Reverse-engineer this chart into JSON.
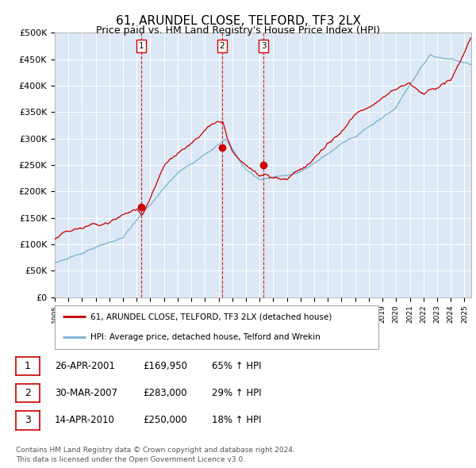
{
  "title": "61, ARUNDEL CLOSE, TELFORD, TF3 2LX",
  "subtitle": "Price paid vs. HM Land Registry's House Price Index (HPI)",
  "ylabel_ticks": [
    "£0",
    "£50K",
    "£100K",
    "£150K",
    "£200K",
    "£250K",
    "£300K",
    "£350K",
    "£400K",
    "£450K",
    "£500K"
  ],
  "ytick_values": [
    0,
    50000,
    100000,
    150000,
    200000,
    250000,
    300000,
    350000,
    400000,
    450000,
    500000
  ],
  "xlim_start": 1995.0,
  "xlim_end": 2025.5,
  "ylim": [
    0,
    500000
  ],
  "sale_dates": [
    2001.32,
    2007.25,
    2010.29
  ],
  "sale_prices": [
    169950,
    283000,
    250000
  ],
  "sale_labels": [
    "1",
    "2",
    "3"
  ],
  "hpi_line_color": "#7ab0d4",
  "sale_line_color": "#cc0000",
  "dashed_line_color": "#cc0000",
  "chart_bg_color": "#dce8f5",
  "legend_entries": [
    "61, ARUNDEL CLOSE, TELFORD, TF3 2LX (detached house)",
    "HPI: Average price, detached house, Telford and Wrekin"
  ],
  "table_rows": [
    [
      "1",
      "26-APR-2001",
      "£169,950",
      "65% ↑ HPI"
    ],
    [
      "2",
      "30-MAR-2007",
      "£283,000",
      "29% ↑ HPI"
    ],
    [
      "3",
      "14-APR-2010",
      "£250,000",
      "18% ↑ HPI"
    ]
  ],
  "footer": "Contains HM Land Registry data © Crown copyright and database right 2024.\nThis data is licensed under the Open Government Licence v3.0.",
  "background_color": "#ffffff",
  "grid_color": "#ffffff",
  "title_fontsize": 11,
  "subtitle_fontsize": 9,
  "axis_fontsize": 8
}
